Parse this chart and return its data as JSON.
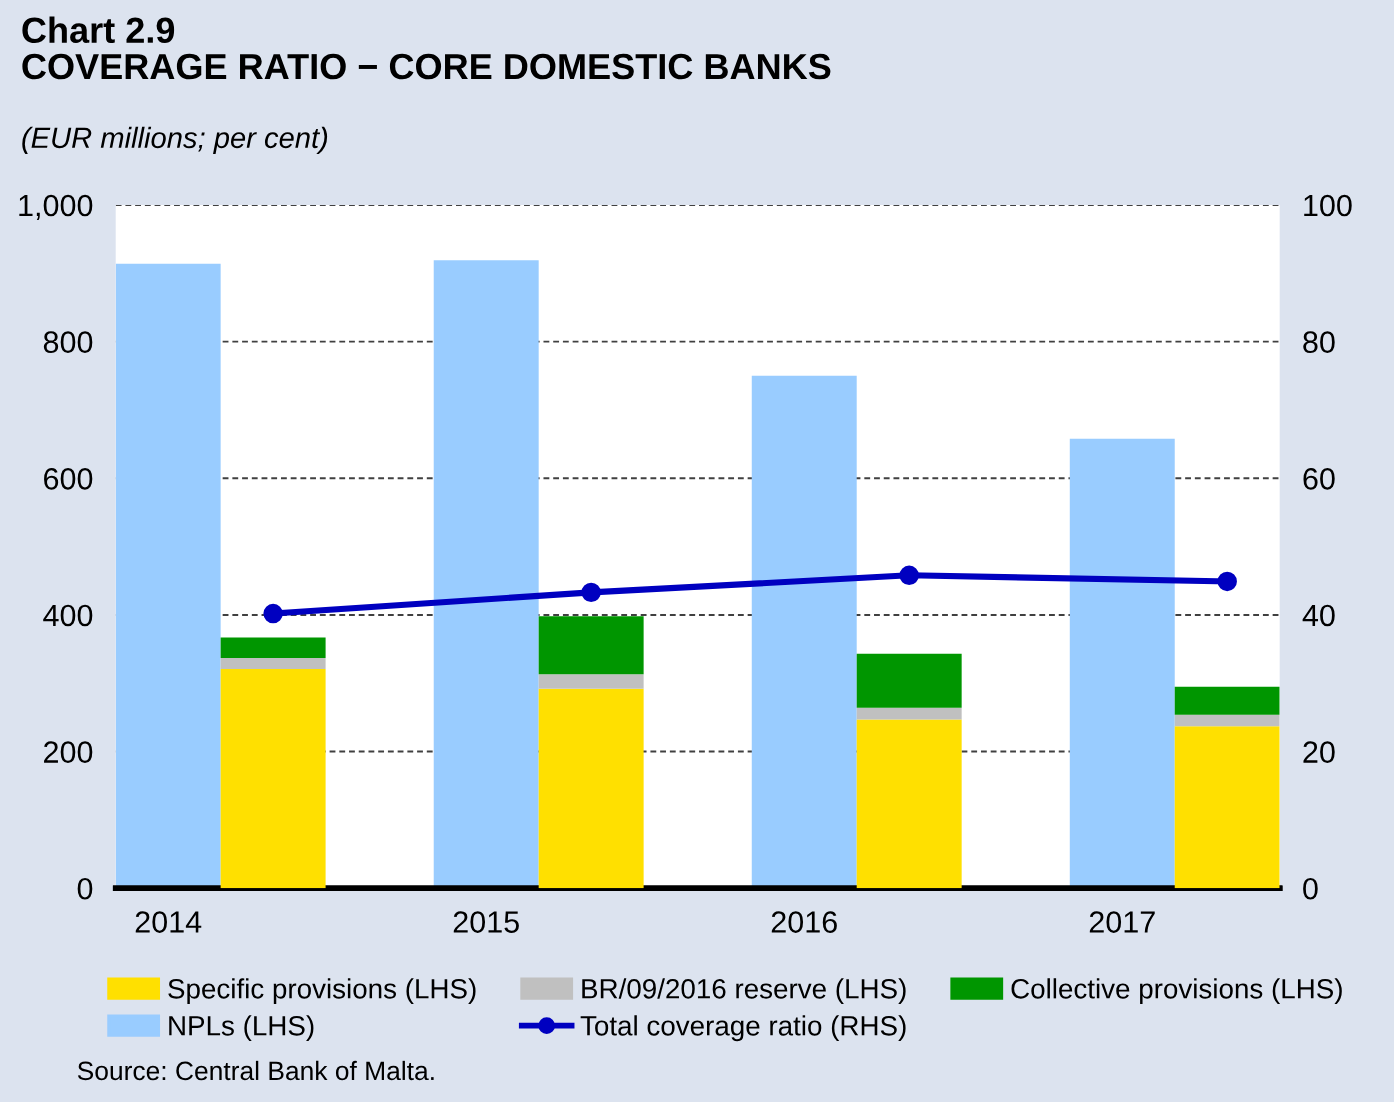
{
  "chart_data": [
    {
      "type": "bar",
      "title": "Chart 2.9\nCOVERAGE RATIO − CORE DOMESTIC BANKS",
      "subtitle": "(EUR millions; per cent)",
      "categories": [
        "2014",
        "2015",
        "2016",
        "2017"
      ],
      "series": [
        {
          "name": "NPLs (LHS)",
          "color": "#99ccff",
          "values": [
            914,
            919,
            750,
            658
          ]
        },
        {
          "name": "Total coverage ratio (RHS)",
          "color": "#0000c0",
          "type": "line",
          "axis": "y2",
          "marker": "circle",
          "values": [
            40.2,
            43.3,
            45.8,
            44.9
          ]
        }
      ],
      "ylim": [
        0,
        1000
      ],
      "yticks": [
        0,
        200,
        400,
        600,
        800,
        {
          "value": 1000,
          "label": "1,000"
        }
      ],
      "y2lim": [
        0,
        100
      ],
      "y2ticks": [
        0,
        20,
        40,
        60,
        80,
        100
      ],
      "grid": "y",
      "legend": "bottom",
      "annotations": [
        "Source: Central Bank of Malta."
      ]
    },
    {
      "type": "bar",
      "categories": [
        "2014",
        "2015",
        "2016",
        "2017"
      ],
      "stacked": true,
      "series": [
        {
          "name": "Specific provisions (LHS)",
          "color": "#ffe000",
          "values": [
            321,
            292,
            247,
            237
          ]
        },
        {
          "name": "BR/09/2016 reserve (LHS)",
          "color": "#c0c0c0",
          "values": [
            16,
            21,
            17,
            17
          ]
        },
        {
          "name": "Collective provisions (LHS)",
          "color": "#009600",
          "values": [
            30,
            85,
            79,
            41
          ]
        }
      ],
      "ylim": [
        0,
        1000
      ],
      "tick_labels": false,
      "legend": "bottom"
    }
  ]
}
